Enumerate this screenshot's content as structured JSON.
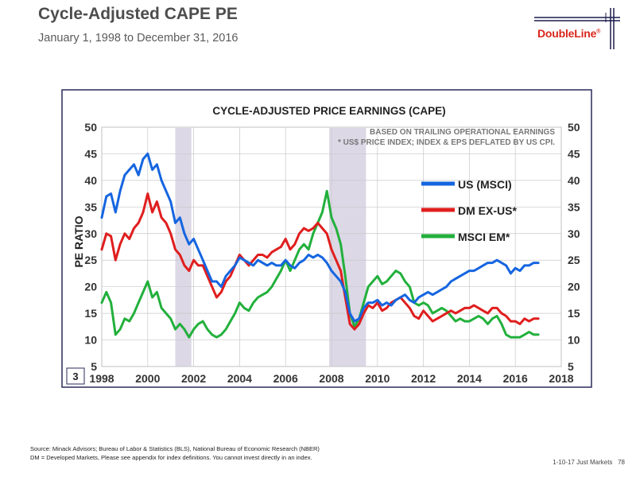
{
  "slide": {
    "title": "Cycle-Adjusted CAPE PE",
    "subtitle": "January 1, 1998 to December 31, 2016"
  },
  "logo": {
    "text": "DoubleLine",
    "registered": "®",
    "brand_red": "#d9261c",
    "brand_navy": "#1a1a4e"
  },
  "chart_data": {
    "type": "line",
    "title": "CYCLE-ADJUSTED PRICE EARNINGS (CAPE)",
    "annotation_lines": [
      "BASED ON TRAILING OPERATIONAL EARNINGS",
      "* US$ PRICE INDEX; INDEX & EPS DEFLATED BY US CPI."
    ],
    "ylabel": "PE RATIO",
    "ylim": [
      5,
      50
    ],
    "xlim": [
      1998,
      2018
    ],
    "yticks": [
      "5",
      "10",
      "15",
      "20",
      "25",
      "30",
      "35",
      "40",
      "45",
      "50"
    ],
    "xticks": [
      "1998",
      "2000",
      "2002",
      "2004",
      "2006",
      "2008",
      "2010",
      "2012",
      "2014",
      "2016",
      "2018"
    ],
    "grid": true,
    "legend_position": "right",
    "chart_number": "3",
    "recessions": [
      [
        2001.2,
        2001.9
      ],
      [
        2007.9,
        2009.5
      ]
    ],
    "series": [
      {
        "name": "US (MSCI)",
        "color": "#1565e0",
        "points": [
          [
            1998.0,
            33
          ],
          [
            1998.2,
            37
          ],
          [
            1998.4,
            37.5
          ],
          [
            1998.6,
            34
          ],
          [
            1998.8,
            38
          ],
          [
            1999.0,
            41
          ],
          [
            1999.2,
            42
          ],
          [
            1999.4,
            43
          ],
          [
            1999.6,
            41
          ],
          [
            1999.8,
            44
          ],
          [
            2000.0,
            45
          ],
          [
            2000.2,
            42
          ],
          [
            2000.4,
            43
          ],
          [
            2000.6,
            40
          ],
          [
            2000.8,
            38
          ],
          [
            2001.0,
            36
          ],
          [
            2001.2,
            32
          ],
          [
            2001.4,
            33
          ],
          [
            2001.6,
            30
          ],
          [
            2001.8,
            28
          ],
          [
            2002.0,
            29
          ],
          [
            2002.2,
            27
          ],
          [
            2002.4,
            25
          ],
          [
            2002.6,
            23
          ],
          [
            2002.8,
            21
          ],
          [
            2003.0,
            21
          ],
          [
            2003.2,
            20
          ],
          [
            2003.4,
            22
          ],
          [
            2003.6,
            23
          ],
          [
            2003.8,
            24
          ],
          [
            2004.0,
            25.5
          ],
          [
            2004.2,
            25
          ],
          [
            2004.4,
            24.5
          ],
          [
            2004.6,
            24
          ],
          [
            2004.8,
            25
          ],
          [
            2005.0,
            24.5
          ],
          [
            2005.2,
            24
          ],
          [
            2005.4,
            24.5
          ],
          [
            2005.6,
            24
          ],
          [
            2005.8,
            24
          ],
          [
            2006.0,
            25
          ],
          [
            2006.2,
            24
          ],
          [
            2006.4,
            23.5
          ],
          [
            2006.6,
            24.5
          ],
          [
            2006.8,
            25
          ],
          [
            2007.0,
            26
          ],
          [
            2007.2,
            25.5
          ],
          [
            2007.4,
            26
          ],
          [
            2007.6,
            25.5
          ],
          [
            2007.8,
            24.5
          ],
          [
            2008.0,
            23
          ],
          [
            2008.2,
            22
          ],
          [
            2008.4,
            21
          ],
          [
            2008.6,
            19
          ],
          [
            2008.8,
            15
          ],
          [
            2009.0,
            13.5
          ],
          [
            2009.2,
            14
          ],
          [
            2009.4,
            16
          ],
          [
            2009.6,
            17
          ],
          [
            2009.8,
            17
          ],
          [
            2010.0,
            17.5
          ],
          [
            2010.2,
            16.5
          ],
          [
            2010.4,
            17
          ],
          [
            2010.6,
            16.5
          ],
          [
            2010.8,
            17.5
          ],
          [
            2011.0,
            18
          ],
          [
            2011.2,
            18.5
          ],
          [
            2011.4,
            17.5
          ],
          [
            2011.6,
            17
          ],
          [
            2011.8,
            18
          ],
          [
            2012.0,
            18.5
          ],
          [
            2012.2,
            19
          ],
          [
            2012.4,
            18.5
          ],
          [
            2012.6,
            19
          ],
          [
            2012.8,
            19.5
          ],
          [
            2013.0,
            20
          ],
          [
            2013.2,
            21
          ],
          [
            2013.4,
            21.5
          ],
          [
            2013.6,
            22
          ],
          [
            2013.8,
            22.5
          ],
          [
            2014.0,
            23
          ],
          [
            2014.2,
            23
          ],
          [
            2014.4,
            23.5
          ],
          [
            2014.6,
            24
          ],
          [
            2014.8,
            24.5
          ],
          [
            2015.0,
            24.5
          ],
          [
            2015.2,
            25
          ],
          [
            2015.4,
            24.5
          ],
          [
            2015.6,
            24
          ],
          [
            2015.8,
            22.5
          ],
          [
            2016.0,
            23.5
          ],
          [
            2016.2,
            23
          ],
          [
            2016.4,
            24
          ],
          [
            2016.6,
            24
          ],
          [
            2016.8,
            24.5
          ],
          [
            2017.0,
            24.5
          ]
        ]
      },
      {
        "name": "DM EX-US*",
        "color": "#e01e1e",
        "points": [
          [
            1998.0,
            27
          ],
          [
            1998.2,
            30
          ],
          [
            1998.4,
            29.5
          ],
          [
            1998.6,
            25
          ],
          [
            1998.8,
            28
          ],
          [
            1999.0,
            30
          ],
          [
            1999.2,
            29
          ],
          [
            1999.4,
            31
          ],
          [
            1999.6,
            32
          ],
          [
            1999.8,
            34
          ],
          [
            2000.0,
            37.5
          ],
          [
            2000.2,
            34
          ],
          [
            2000.4,
            36
          ],
          [
            2000.6,
            33
          ],
          [
            2000.8,
            32
          ],
          [
            2001.0,
            30
          ],
          [
            2001.2,
            27
          ],
          [
            2001.4,
            26
          ],
          [
            2001.6,
            24
          ],
          [
            2001.8,
            23
          ],
          [
            2002.0,
            25
          ],
          [
            2002.2,
            24
          ],
          [
            2002.4,
            24
          ],
          [
            2002.6,
            22
          ],
          [
            2002.8,
            20
          ],
          [
            2003.0,
            18
          ],
          [
            2003.2,
            19
          ],
          [
            2003.4,
            21
          ],
          [
            2003.6,
            22
          ],
          [
            2003.8,
            24
          ],
          [
            2004.0,
            26
          ],
          [
            2004.2,
            25
          ],
          [
            2004.4,
            24
          ],
          [
            2004.6,
            25
          ],
          [
            2004.8,
            26
          ],
          [
            2005.0,
            26
          ],
          [
            2005.2,
            25.5
          ],
          [
            2005.4,
            26.5
          ],
          [
            2005.6,
            27
          ],
          [
            2005.8,
            27.5
          ],
          [
            2006.0,
            29
          ],
          [
            2006.2,
            27
          ],
          [
            2006.4,
            28
          ],
          [
            2006.6,
            30
          ],
          [
            2006.8,
            31
          ],
          [
            2007.0,
            30.5
          ],
          [
            2007.2,
            31
          ],
          [
            2007.4,
            32
          ],
          [
            2007.6,
            31
          ],
          [
            2007.8,
            30
          ],
          [
            2008.0,
            27
          ],
          [
            2008.2,
            25
          ],
          [
            2008.4,
            23
          ],
          [
            2008.6,
            18
          ],
          [
            2008.8,
            13
          ],
          [
            2009.0,
            12
          ],
          [
            2009.2,
            13
          ],
          [
            2009.4,
            15
          ],
          [
            2009.6,
            16.5
          ],
          [
            2009.8,
            16
          ],
          [
            2010.0,
            17
          ],
          [
            2010.2,
            15.5
          ],
          [
            2010.4,
            16
          ],
          [
            2010.6,
            17
          ],
          [
            2010.8,
            17.5
          ],
          [
            2011.0,
            18
          ],
          [
            2011.2,
            17
          ],
          [
            2011.4,
            16
          ],
          [
            2011.6,
            14.5
          ],
          [
            2011.8,
            14
          ],
          [
            2012.0,
            15.5
          ],
          [
            2012.2,
            14.5
          ],
          [
            2012.4,
            13.5
          ],
          [
            2012.6,
            14
          ],
          [
            2012.8,
            14.5
          ],
          [
            2013.0,
            15
          ],
          [
            2013.2,
            15.5
          ],
          [
            2013.4,
            15
          ],
          [
            2013.6,
            15.5
          ],
          [
            2013.8,
            16
          ],
          [
            2014.0,
            16
          ],
          [
            2014.2,
            16.5
          ],
          [
            2014.4,
            16
          ],
          [
            2014.6,
            15.5
          ],
          [
            2014.8,
            15
          ],
          [
            2015.0,
            16
          ],
          [
            2015.2,
            16
          ],
          [
            2015.4,
            15
          ],
          [
            2015.6,
            14.5
          ],
          [
            2015.8,
            13.5
          ],
          [
            2016.0,
            13.5
          ],
          [
            2016.2,
            13
          ],
          [
            2016.4,
            14
          ],
          [
            2016.6,
            13.5
          ],
          [
            2016.8,
            14
          ],
          [
            2017.0,
            14
          ]
        ]
      },
      {
        "name": "MSCI EM*",
        "color": "#22b03c",
        "points": [
          [
            1998.0,
            17
          ],
          [
            1998.2,
            19
          ],
          [
            1998.4,
            17
          ],
          [
            1998.6,
            11
          ],
          [
            1998.8,
            12
          ],
          [
            1999.0,
            14
          ],
          [
            1999.2,
            13.5
          ],
          [
            1999.4,
            15
          ],
          [
            1999.6,
            17
          ],
          [
            1999.8,
            19
          ],
          [
            2000.0,
            21
          ],
          [
            2000.2,
            18
          ],
          [
            2000.4,
            19
          ],
          [
            2000.6,
            16
          ],
          [
            2000.8,
            15
          ],
          [
            2001.0,
            14
          ],
          [
            2001.2,
            12
          ],
          [
            2001.4,
            13
          ],
          [
            2001.6,
            12
          ],
          [
            2001.8,
            10.5
          ],
          [
            2002.0,
            12
          ],
          [
            2002.2,
            13
          ],
          [
            2002.4,
            13.5
          ],
          [
            2002.6,
            12
          ],
          [
            2002.8,
            11
          ],
          [
            2003.0,
            10.5
          ],
          [
            2003.2,
            11
          ],
          [
            2003.4,
            12
          ],
          [
            2003.6,
            13.5
          ],
          [
            2003.8,
            15
          ],
          [
            2004.0,
            17
          ],
          [
            2004.2,
            16
          ],
          [
            2004.4,
            15.5
          ],
          [
            2004.6,
            17
          ],
          [
            2004.8,
            18
          ],
          [
            2005.0,
            18.5
          ],
          [
            2005.2,
            19
          ],
          [
            2005.4,
            20
          ],
          [
            2005.6,
            21.5
          ],
          [
            2005.8,
            23
          ],
          [
            2006.0,
            25
          ],
          [
            2006.2,
            23
          ],
          [
            2006.4,
            25
          ],
          [
            2006.6,
            27
          ],
          [
            2006.8,
            28
          ],
          [
            2007.0,
            27
          ],
          [
            2007.2,
            30
          ],
          [
            2007.4,
            32
          ],
          [
            2007.6,
            34
          ],
          [
            2007.8,
            38
          ],
          [
            2008.0,
            33
          ],
          [
            2008.2,
            31
          ],
          [
            2008.4,
            28
          ],
          [
            2008.6,
            22
          ],
          [
            2008.8,
            15
          ],
          [
            2009.0,
            12.5
          ],
          [
            2009.2,
            14
          ],
          [
            2009.4,
            17
          ],
          [
            2009.6,
            20
          ],
          [
            2009.8,
            21
          ],
          [
            2010.0,
            22
          ],
          [
            2010.2,
            20.5
          ],
          [
            2010.4,
            21
          ],
          [
            2010.6,
            22
          ],
          [
            2010.8,
            23
          ],
          [
            2011.0,
            22.5
          ],
          [
            2011.2,
            21
          ],
          [
            2011.4,
            20
          ],
          [
            2011.6,
            17
          ],
          [
            2011.8,
            16.5
          ],
          [
            2012.0,
            17
          ],
          [
            2012.2,
            16.5
          ],
          [
            2012.4,
            15
          ],
          [
            2012.6,
            15.5
          ],
          [
            2012.8,
            16
          ],
          [
            2013.0,
            15.5
          ],
          [
            2013.2,
            14.5
          ],
          [
            2013.4,
            13.5
          ],
          [
            2013.6,
            14
          ],
          [
            2013.8,
            13.5
          ],
          [
            2014.0,
            13.5
          ],
          [
            2014.2,
            14
          ],
          [
            2014.4,
            14.5
          ],
          [
            2014.6,
            14
          ],
          [
            2014.8,
            13
          ],
          [
            2015.0,
            14
          ],
          [
            2015.2,
            14.5
          ],
          [
            2015.4,
            13
          ],
          [
            2015.6,
            11
          ],
          [
            2015.8,
            10.5
          ],
          [
            2016.0,
            10.5
          ],
          [
            2016.2,
            10.5
          ],
          [
            2016.4,
            11
          ],
          [
            2016.6,
            11.5
          ],
          [
            2016.8,
            11
          ],
          [
            2017.0,
            11
          ]
        ]
      }
    ]
  },
  "footer": {
    "source": "Source: Minack Advisors; Bureau of Labor & Statistics (BLS), National Bureau of Economic Research (NBER)",
    "definitions": "DM = Developed Markets, Please see appendix for index definitions. You cannot invest directly in an index.",
    "page_label": "1-10-17 Just Markets",
    "page_number": "78"
  }
}
